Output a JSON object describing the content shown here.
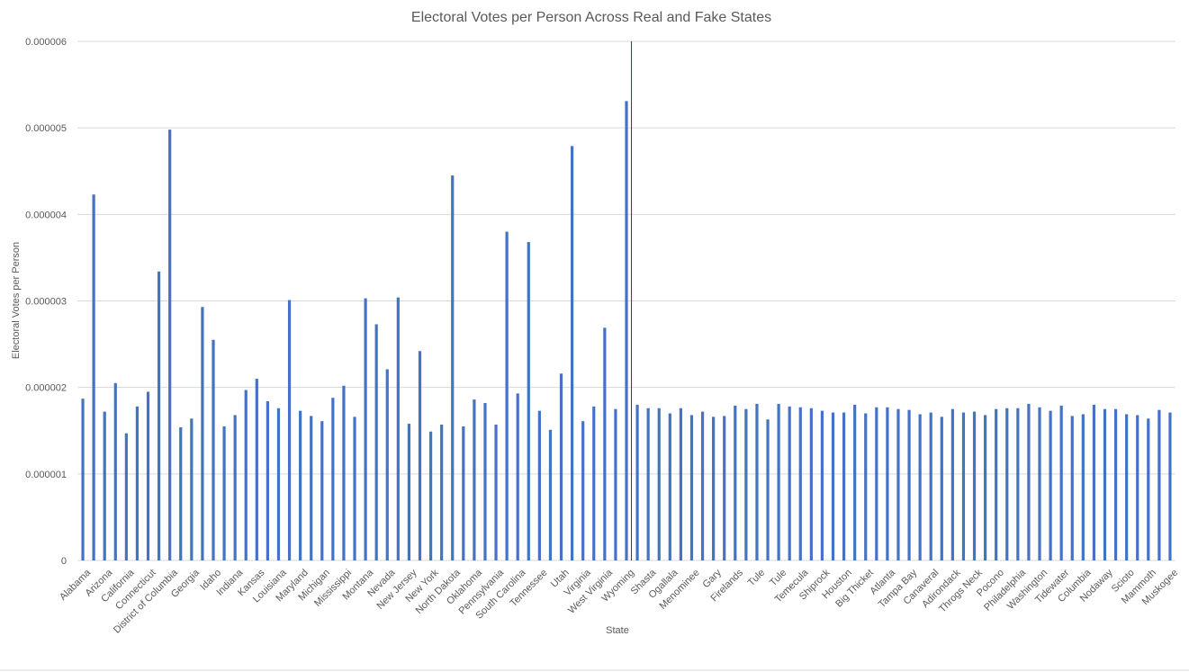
{
  "chart_data": {
    "type": "bar",
    "title": "Electoral Votes per Person Across Real and Fake States",
    "x_label": "State",
    "y_label": "Electoral Votes per Person",
    "color": "#4472c4",
    "grid": true,
    "categories": [
      "Alabama",
      null,
      "Arizona",
      null,
      "California",
      null,
      "Connecticut",
      null,
      "District of Columbia",
      null,
      "Georgia",
      null,
      "Idaho",
      null,
      "Indiana",
      null,
      "Kansas",
      null,
      "Louisiana",
      null,
      "Maryland",
      null,
      "Michigan",
      null,
      "Mississippi",
      null,
      "Montana",
      null,
      "Nevada",
      null,
      "New Jersey",
      null,
      "New York",
      null,
      "North Dakota",
      null,
      "Oklahoma",
      null,
      "Pennsylvania",
      null,
      "South Carolina",
      null,
      "Tennessee",
      null,
      "Utah",
      null,
      "Virginia",
      null,
      "West Virginia",
      null,
      "Wyoming",
      null,
      "Shasta",
      null,
      "Ogallala",
      null,
      "Menominee",
      null,
      "Gary",
      null,
      "Firelands",
      null,
      "Tule",
      null,
      "Tule",
      null,
      "Temecula",
      null,
      "Shiprock",
      null,
      "Houston",
      null,
      "Big Thicket",
      null,
      "Atlanta",
      null,
      "Tampa Bay",
      null,
      "Canaveral",
      null,
      "Adirondack",
      null,
      "Throgs Neck",
      null,
      "Pocono",
      null,
      "Philadelphia",
      null,
      "Washington",
      null,
      "Tidewater",
      null,
      "Columbia",
      null,
      "Nodaway",
      null,
      "Scioto",
      null,
      "Mammoth",
      null,
      "Muskogee"
    ],
    "values": [
      1.87e-06,
      4.23e-06,
      1.72e-06,
      2.05e-06,
      1.47e-06,
      1.78e-06,
      1.95e-06,
      3.34e-06,
      4.98e-06,
      1.54e-06,
      1.64e-06,
      2.93e-06,
      2.55e-06,
      1.55e-06,
      1.68e-06,
      1.97e-06,
      2.1e-06,
      1.84e-06,
      1.76e-06,
      3.01e-06,
      1.73e-06,
      1.67e-06,
      1.61e-06,
      1.88e-06,
      2.02e-06,
      1.66e-06,
      3.03e-06,
      2.73e-06,
      2.21e-06,
      3.04e-06,
      1.58e-06,
      2.42e-06,
      1.49e-06,
      1.57e-06,
      4.45e-06,
      1.55e-06,
      1.86e-06,
      1.82e-06,
      1.57e-06,
      3.8e-06,
      1.93e-06,
      3.68e-06,
      1.73e-06,
      1.51e-06,
      2.16e-06,
      4.79e-06,
      1.61e-06,
      1.78e-06,
      2.69e-06,
      1.75e-06,
      5.31e-06,
      1.8e-06,
      1.76e-06,
      1.76e-06,
      1.7e-06,
      1.76e-06,
      1.68e-06,
      1.72e-06,
      1.66e-06,
      1.67e-06,
      1.79e-06,
      1.75e-06,
      1.81e-06,
      1.63e-06,
      1.81e-06,
      1.78e-06,
      1.77e-06,
      1.76e-06,
      1.73e-06,
      1.71e-06,
      1.71e-06,
      1.8e-06,
      1.7e-06,
      1.77e-06,
      1.77e-06,
      1.75e-06,
      1.74e-06,
      1.69e-06,
      1.71e-06,
      1.66e-06,
      1.75e-06,
      1.71e-06,
      1.72e-06,
      1.68e-06,
      1.75e-06,
      1.76e-06,
      1.76e-06,
      1.81e-06,
      1.77e-06,
      1.73e-06,
      1.79e-06,
      1.67e-06,
      1.69e-06,
      1.8e-06,
      1.75e-06,
      1.75e-06,
      1.69e-06,
      1.68e-06,
      1.64e-06,
      1.74e-06,
      1.71e-06
    ],
    "ylim": [
      0,
      6e-06
    ],
    "yticks": [
      0,
      1e-06,
      2e-06,
      3e-06,
      4e-06,
      5e-06,
      6e-06
    ]
  }
}
